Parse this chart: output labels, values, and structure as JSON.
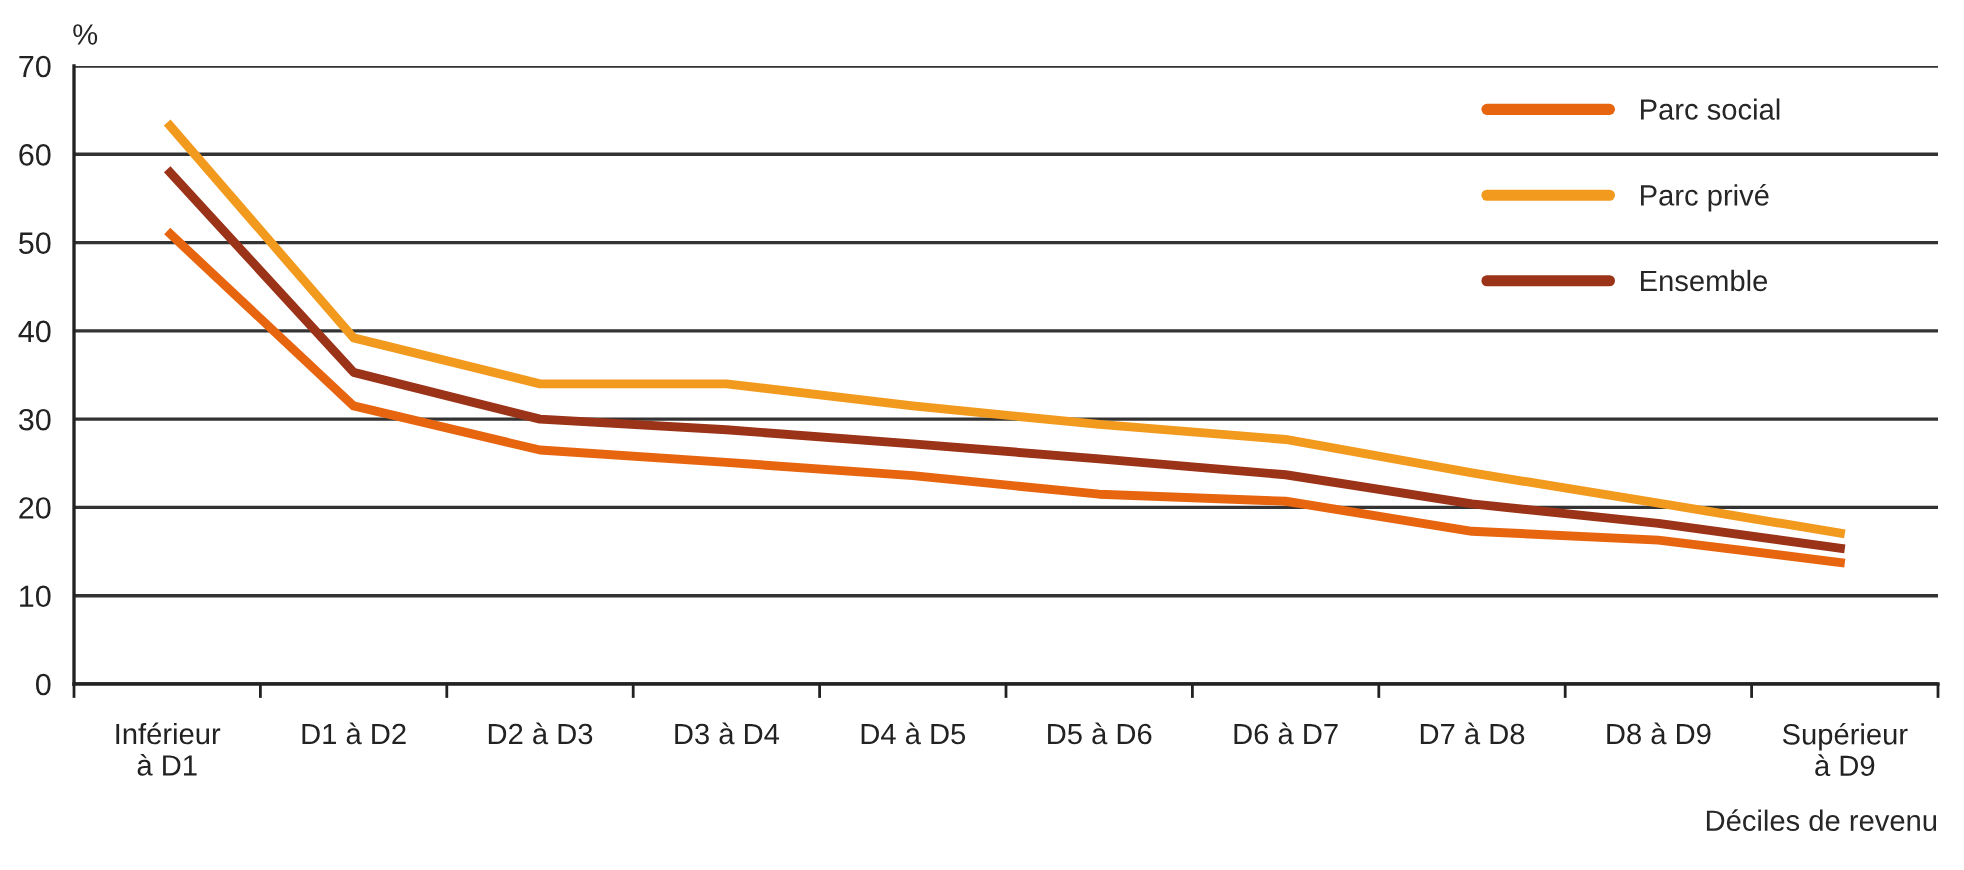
{
  "chart_data": {
    "type": "line",
    "categories": [
      "Inférieur\nà D1",
      "D1 à D2",
      "D2 à D3",
      "D3 à D4",
      "D4 à D5",
      "D5 à D6",
      "D6 à D7",
      "D7 à D8",
      "D8 à D9",
      "Supérieur\nà D9"
    ],
    "series": [
      {
        "name": "Parc social",
        "color": "#e8650f",
        "values": [
          51.3,
          31.5,
          26.5,
          25.1,
          23.6,
          21.5,
          20.7,
          17.3,
          16.3,
          13.7
        ]
      },
      {
        "name": "Parc privé",
        "color": "#f29a1e",
        "values": [
          63.6,
          39.2,
          34.0,
          34.0,
          31.5,
          29.4,
          27.7,
          23.9,
          20.5,
          17.0
        ]
      },
      {
        "name": "Ensemble",
        "color": "#9b3318",
        "values": [
          58.3,
          35.3,
          30.0,
          28.8,
          27.2,
          25.5,
          23.7,
          20.4,
          18.2,
          15.3
        ]
      }
    ],
    "ylabel": "%",
    "xlabel": "Déciles de revenu",
    "ylim": [
      0,
      70
    ],
    "yticks": [
      0,
      10,
      20,
      30,
      40,
      50,
      60,
      70
    ],
    "grid": "y",
    "legend": "top right",
    "marker": "none",
    "line_style": "solid"
  }
}
